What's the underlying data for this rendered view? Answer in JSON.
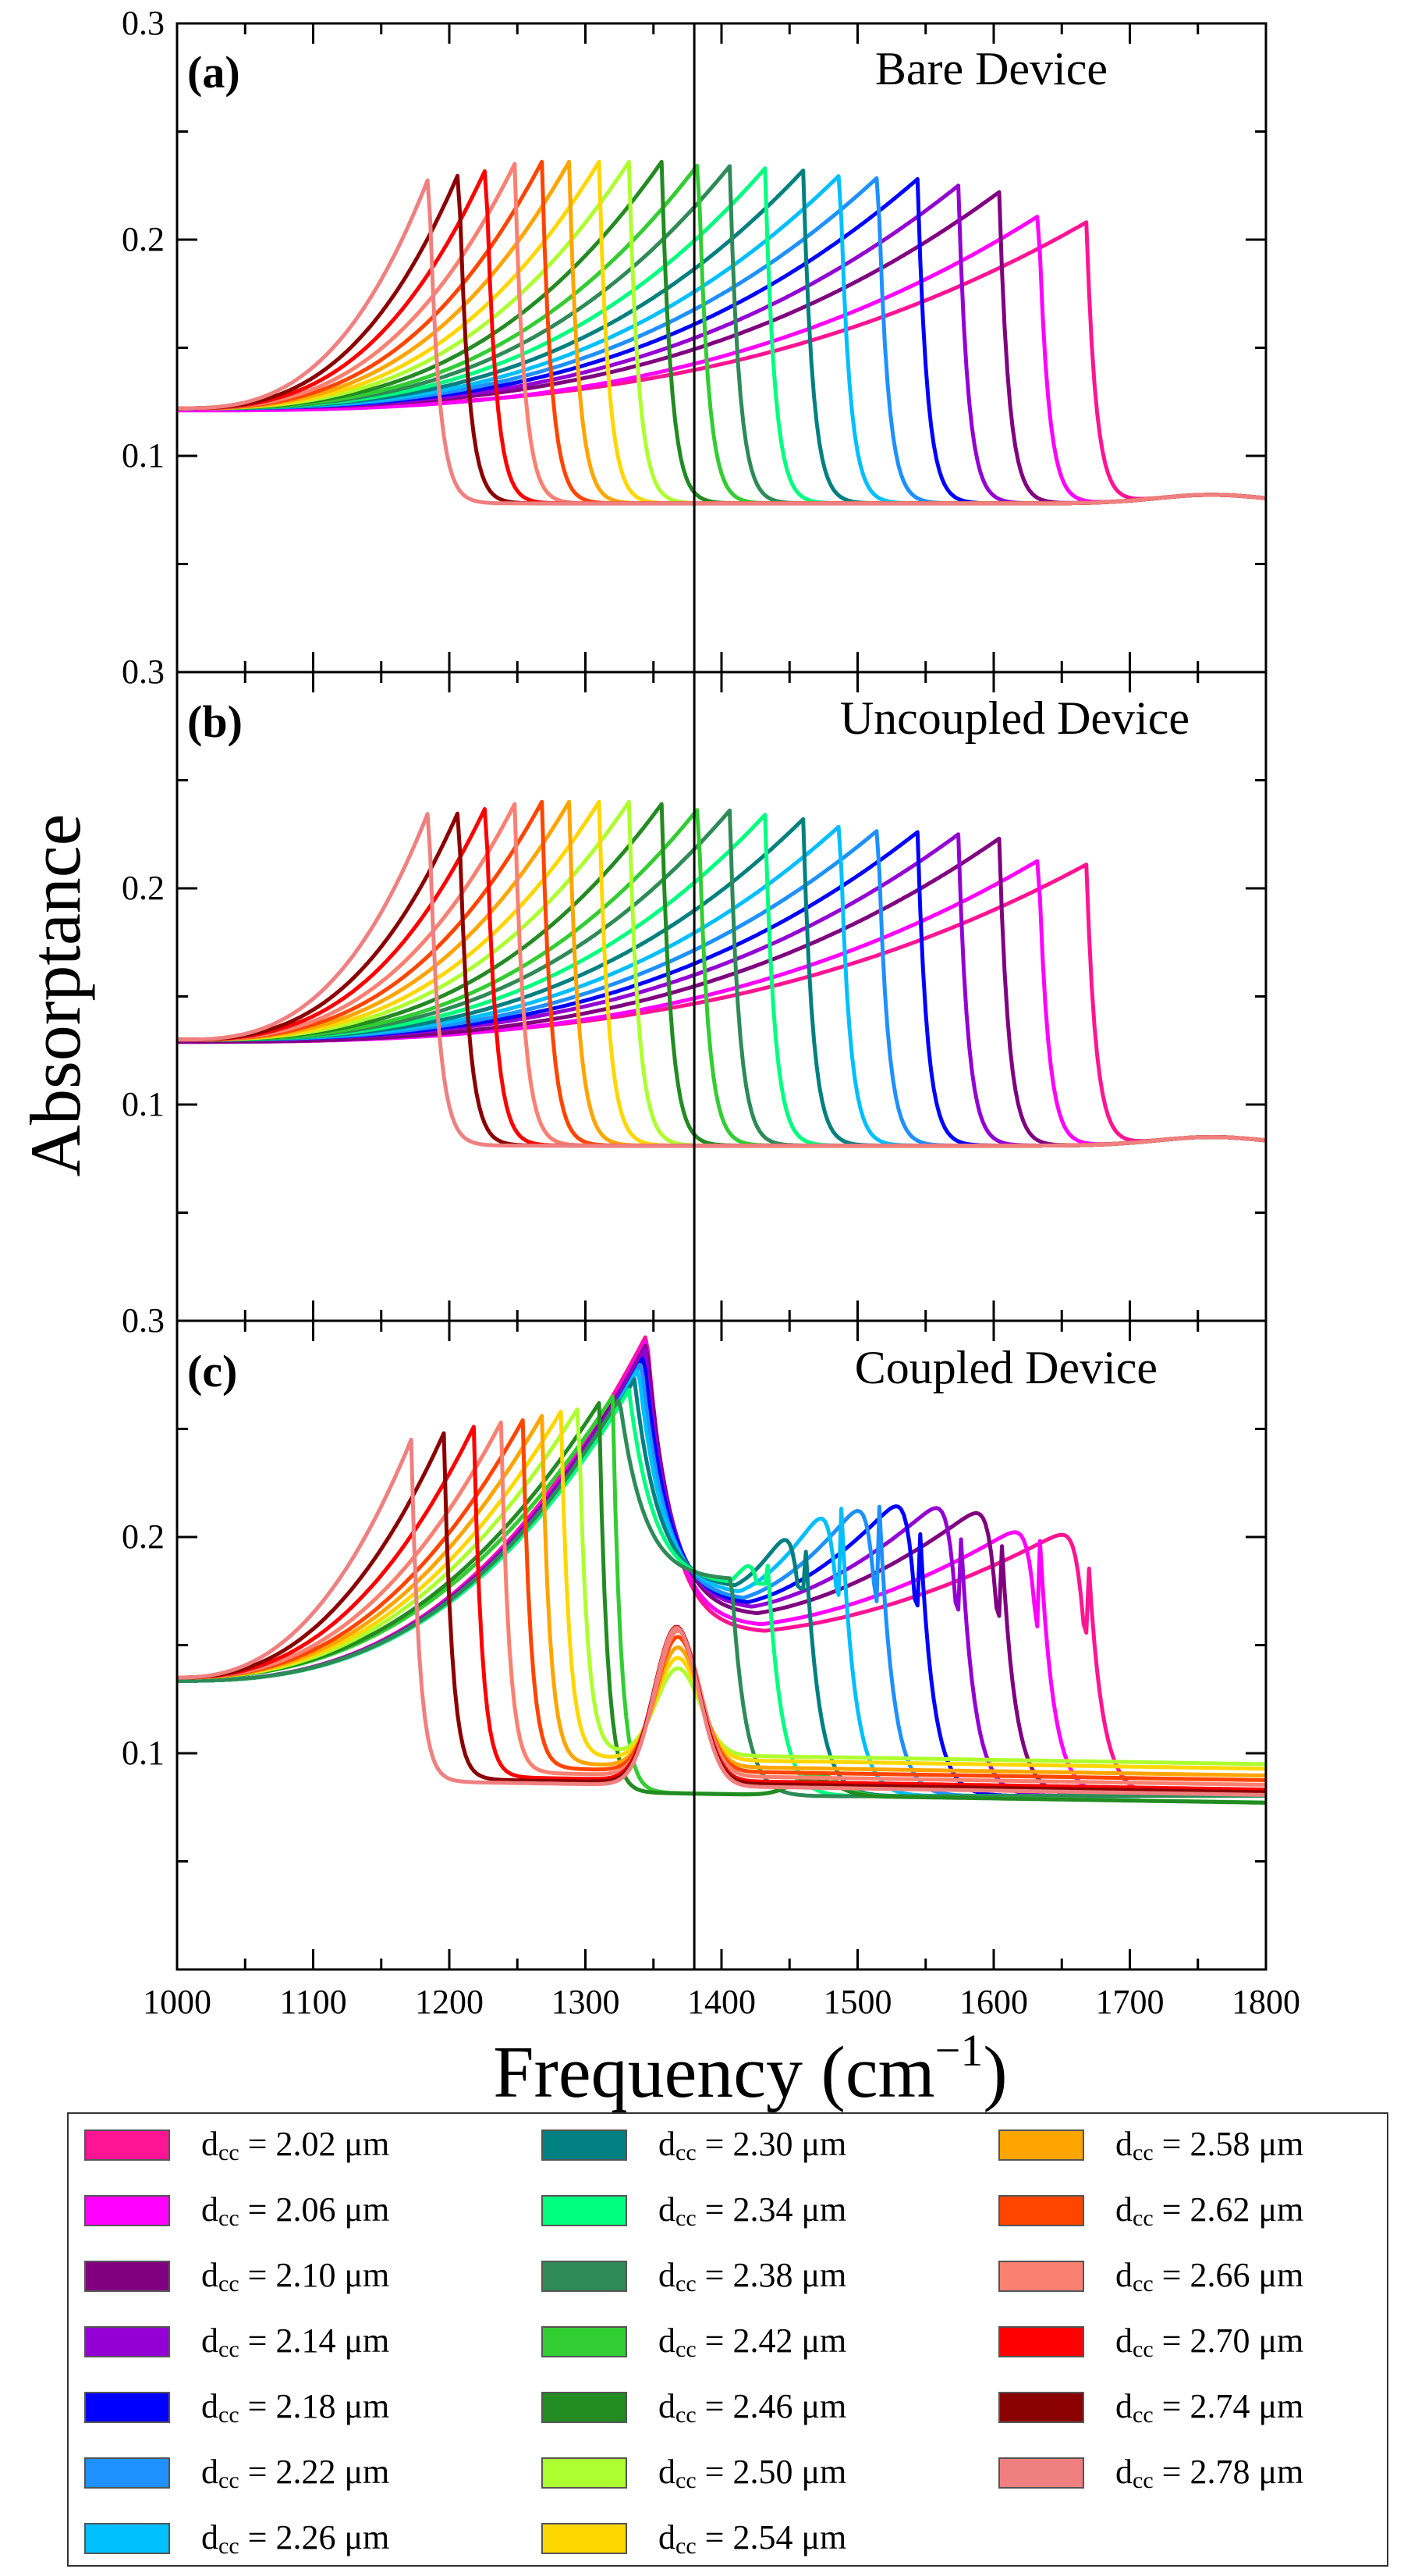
{
  "figure": {
    "ylabel": "Absorptance",
    "xlabel": "Frequency (cm",
    "xlabel_sup": "−1",
    "xlabel_close": ")"
  },
  "legend": {
    "symbol": "d",
    "subscript": "cc",
    "unit": "μm",
    "entries": [
      {
        "value": "2.02",
        "color": "#ff1493"
      },
      {
        "value": "2.06",
        "color": "#ff00ff"
      },
      {
        "value": "2.10",
        "color": "#800080"
      },
      {
        "value": "2.14",
        "color": "#9400d3"
      },
      {
        "value": "2.18",
        "color": "#0000ff"
      },
      {
        "value": "2.22",
        "color": "#1e90ff"
      },
      {
        "value": "2.26",
        "color": "#00bfff"
      },
      {
        "value": "2.30",
        "color": "#008080"
      },
      {
        "value": "2.34",
        "color": "#00ff7f"
      },
      {
        "value": "2.38",
        "color": "#2e8b57"
      },
      {
        "value": "2.42",
        "color": "#32cd32"
      },
      {
        "value": "2.46",
        "color": "#228b22"
      },
      {
        "value": "2.50",
        "color": "#adff2f"
      },
      {
        "value": "2.54",
        "color": "#ffd700"
      },
      {
        "value": "2.58",
        "color": "#ffa500"
      },
      {
        "value": "2.62",
        "color": "#ff4500"
      },
      {
        "value": "2.66",
        "color": "#fa8072"
      },
      {
        "value": "2.70",
        "color": "#ff0000"
      },
      {
        "value": "2.74",
        "color": "#8b0000"
      },
      {
        "value": "2.78",
        "color": "#f08080"
      }
    ]
  },
  "chart_data": [
    {
      "type": "line",
      "panel_label": "(a)",
      "title": "Bare Device",
      "xlim": [
        1000,
        1800
      ],
      "ylim": [
        0,
        0.3
      ],
      "yticks": [
        "0.1",
        "0.2",
        "0.3"
      ],
      "xticks": [
        "1000",
        "1100",
        "1200",
        "1300",
        "1400",
        "1500",
        "1600",
        "1700",
        "1800"
      ],
      "vline_x": 1380,
      "series": [
        {
          "name": "2.02",
          "peak_x": 1668,
          "peak_y": 0.208,
          "base_y": 0.122,
          "floor_y": 0.078
        },
        {
          "name": "2.06",
          "peak_x": 1633,
          "peak_y": 0.211,
          "base_y": 0.121,
          "floor_y": 0.078
        },
        {
          "name": "2.10",
          "peak_x": 1604,
          "peak_y": 0.222,
          "base_y": 0.122,
          "floor_y": 0.078
        },
        {
          "name": "2.14",
          "peak_x": 1574,
          "peak_y": 0.225,
          "base_y": 0.122,
          "floor_y": 0.078
        },
        {
          "name": "2.18",
          "peak_x": 1544,
          "peak_y": 0.228,
          "base_y": 0.122,
          "floor_y": 0.078
        },
        {
          "name": "2.22",
          "peak_x": 1515,
          "peak_y": 0.229,
          "base_y": 0.122,
          "floor_y": 0.078
        },
        {
          "name": "2.26",
          "peak_x": 1487,
          "peak_y": 0.23,
          "base_y": 0.122,
          "floor_y": 0.078
        },
        {
          "name": "2.30",
          "peak_x": 1460,
          "peak_y": 0.232,
          "base_y": 0.122,
          "floor_y": 0.078
        },
        {
          "name": "2.34",
          "peak_x": 1432,
          "peak_y": 0.233,
          "base_y": 0.122,
          "floor_y": 0.078
        },
        {
          "name": "2.38",
          "peak_x": 1406,
          "peak_y": 0.234,
          "base_y": 0.122,
          "floor_y": 0.078
        },
        {
          "name": "2.42",
          "peak_x": 1383,
          "peak_y": 0.235,
          "base_y": 0.122,
          "floor_y": 0.078
        },
        {
          "name": "2.46",
          "peak_x": 1356,
          "peak_y": 0.236,
          "base_y": 0.122,
          "floor_y": 0.078
        },
        {
          "name": "2.50",
          "peak_x": 1332,
          "peak_y": 0.236,
          "base_y": 0.122,
          "floor_y": 0.078
        },
        {
          "name": "2.54",
          "peak_x": 1310,
          "peak_y": 0.236,
          "base_y": 0.122,
          "floor_y": 0.078
        },
        {
          "name": "2.58",
          "peak_x": 1288,
          "peak_y": 0.236,
          "base_y": 0.122,
          "floor_y": 0.078
        },
        {
          "name": "2.62",
          "peak_x": 1268,
          "peak_y": 0.236,
          "base_y": 0.122,
          "floor_y": 0.078
        },
        {
          "name": "2.66",
          "peak_x": 1248,
          "peak_y": 0.235,
          "base_y": 0.122,
          "floor_y": 0.078
        },
        {
          "name": "2.70",
          "peak_x": 1227,
          "peak_y": 0.233,
          "base_y": 0.122,
          "floor_y": 0.078
        },
        {
          "name": "2.74",
          "peak_x": 1207,
          "peak_y": 0.231,
          "base_y": 0.122,
          "floor_y": 0.078
        },
        {
          "name": "2.78",
          "peak_x": 1185,
          "peak_y": 0.229,
          "base_y": 0.122,
          "floor_y": 0.078
        }
      ]
    },
    {
      "type": "line",
      "panel_label": "(b)",
      "title": "Uncoupled Device",
      "xlim": [
        1000,
        1800
      ],
      "ylim": [
        0,
        0.3
      ],
      "yticks": [
        "0.1",
        "0.2",
        "0.3"
      ],
      "xticks": [
        "1000",
        "1100",
        "1200",
        "1300",
        "1400",
        "1500",
        "1600",
        "1700",
        "1800"
      ],
      "vline_x": 1380,
      "series": [
        {
          "name": "2.02",
          "peak_x": 1668,
          "peak_y": 0.211,
          "base_y": 0.13,
          "floor_y": 0.081
        },
        {
          "name": "2.06",
          "peak_x": 1633,
          "peak_y": 0.213,
          "base_y": 0.129,
          "floor_y": 0.081
        },
        {
          "name": "2.10",
          "peak_x": 1604,
          "peak_y": 0.223,
          "base_y": 0.129,
          "floor_y": 0.081
        },
        {
          "name": "2.14",
          "peak_x": 1574,
          "peak_y": 0.225,
          "base_y": 0.13,
          "floor_y": 0.081
        },
        {
          "name": "2.18",
          "peak_x": 1544,
          "peak_y": 0.226,
          "base_y": 0.13,
          "floor_y": 0.081
        },
        {
          "name": "2.22",
          "peak_x": 1515,
          "peak_y": 0.227,
          "base_y": 0.13,
          "floor_y": 0.081
        },
        {
          "name": "2.26",
          "peak_x": 1487,
          "peak_y": 0.229,
          "base_y": 0.13,
          "floor_y": 0.081
        },
        {
          "name": "2.30",
          "peak_x": 1460,
          "peak_y": 0.232,
          "base_y": 0.13,
          "floor_y": 0.081
        },
        {
          "name": "2.34",
          "peak_x": 1432,
          "peak_y": 0.234,
          "base_y": 0.13,
          "floor_y": 0.081
        },
        {
          "name": "2.38",
          "peak_x": 1406,
          "peak_y": 0.236,
          "base_y": 0.13,
          "floor_y": 0.081
        },
        {
          "name": "2.42",
          "peak_x": 1383,
          "peak_y": 0.237,
          "base_y": 0.13,
          "floor_y": 0.081
        },
        {
          "name": "2.46",
          "peak_x": 1356,
          "peak_y": 0.239,
          "base_y": 0.13,
          "floor_y": 0.081
        },
        {
          "name": "2.50",
          "peak_x": 1332,
          "peak_y": 0.24,
          "base_y": 0.13,
          "floor_y": 0.081
        },
        {
          "name": "2.54",
          "peak_x": 1310,
          "peak_y": 0.24,
          "base_y": 0.13,
          "floor_y": 0.081
        },
        {
          "name": "2.58",
          "peak_x": 1288,
          "peak_y": 0.24,
          "base_y": 0.13,
          "floor_y": 0.081
        },
        {
          "name": "2.62",
          "peak_x": 1268,
          "peak_y": 0.24,
          "base_y": 0.13,
          "floor_y": 0.081
        },
        {
          "name": "2.66",
          "peak_x": 1248,
          "peak_y": 0.239,
          "base_y": 0.13,
          "floor_y": 0.081
        },
        {
          "name": "2.70",
          "peak_x": 1227,
          "peak_y": 0.238,
          "base_y": 0.13,
          "floor_y": 0.081
        },
        {
          "name": "2.74",
          "peak_x": 1207,
          "peak_y": 0.236,
          "base_y": 0.13,
          "floor_y": 0.081
        },
        {
          "name": "2.78",
          "peak_x": 1185,
          "peak_y": 0.236,
          "base_y": 0.13,
          "floor_y": 0.081
        }
      ]
    },
    {
      "type": "line",
      "panel_label": "(c)",
      "title": "Coupled Device",
      "xlim": [
        1000,
        1800
      ],
      "ylim": [
        0,
        0.3
      ],
      "yticks": [
        "0.1",
        "0.2",
        "0.3"
      ],
      "xticks": [
        "1000",
        "1100",
        "1200",
        "1300",
        "1400",
        "1500",
        "1600",
        "1700",
        "1800"
      ],
      "vline_x": 1380,
      "series": [
        {
          "name": "2.02",
          "peak_x": 1668,
          "peak_y": 0.211,
          "base_y": 0.135,
          "floor_y": 0.08,
          "lower_peak_x": 1345,
          "lower_peak_y": 0.298,
          "dip_y": 0.157
        },
        {
          "name": "2.06",
          "peak_x": 1633,
          "peak_y": 0.213,
          "base_y": 0.135,
          "floor_y": 0.08,
          "lower_peak_x": 1345,
          "lower_peak_y": 0.296,
          "dip_y": 0.16
        },
        {
          "name": "2.10",
          "peak_x": 1604,
          "peak_y": 0.224,
          "base_y": 0.135,
          "floor_y": 0.08,
          "lower_peak_x": 1345,
          "lower_peak_y": 0.294,
          "dip_y": 0.165
        },
        {
          "name": "2.14",
          "peak_x": 1574,
          "peak_y": 0.228,
          "base_y": 0.135,
          "floor_y": 0.08,
          "lower_peak_x": 1344,
          "lower_peak_y": 0.291,
          "dip_y": 0.168
        },
        {
          "name": "2.18",
          "peak_x": 1544,
          "peak_y": 0.231,
          "base_y": 0.135,
          "floor_y": 0.08,
          "lower_peak_x": 1343,
          "lower_peak_y": 0.288,
          "dip_y": 0.17
        },
        {
          "name": "2.22",
          "peak_x": 1515,
          "peak_y": 0.231,
          "base_y": 0.135,
          "floor_y": 0.08,
          "lower_peak_x": 1341,
          "lower_peak_y": 0.285,
          "dip_y": 0.172
        },
        {
          "name": "2.26",
          "peak_x": 1487,
          "peak_y": 0.23,
          "base_y": 0.135,
          "floor_y": 0.08,
          "lower_peak_x": 1339,
          "lower_peak_y": 0.282,
          "dip_y": 0.175
        },
        {
          "name": "2.30",
          "peak_x": 1460,
          "peak_y": 0.221,
          "base_y": 0.135,
          "floor_y": 0.08,
          "lower_peak_x": 1336,
          "lower_peak_y": 0.277,
          "dip_y": 0.178
        },
        {
          "name": "2.34",
          "peak_x": 1432,
          "peak_y": 0.213,
          "base_y": 0.135,
          "floor_y": 0.08,
          "lower_peak_x": 1332,
          "lower_peak_y": 0.272,
          "dip_y": 0.18
        },
        {
          "name": "2.38",
          "peak_x": 1406,
          "peak_y": 0.197,
          "base_y": 0.135,
          "floor_y": 0.08,
          "lower_peak_x": 1325,
          "lower_peak_y": 0.268,
          "dip_y": 0.182
        },
        {
          "name": "2.42",
          "peak_x": 1320,
          "peak_y": 0.265,
          "base_y": 0.135,
          "floor_y": 0.082,
          "upper_peak_x": 1470,
          "upper_peak_y": 0.092
        },
        {
          "name": "2.46",
          "peak_x": 1310,
          "peak_y": 0.262,
          "base_y": 0.135,
          "floor_y": 0.082,
          "upper_peak_x": 1468,
          "upper_peak_y": 0.09
        },
        {
          "name": "2.50",
          "peak_x": 1295,
          "peak_y": 0.26,
          "base_y": 0.135,
          "floor_y": 0.1,
          "upper_peak_x": 1368,
          "upper_peak_y": 0.14
        },
        {
          "name": "2.54",
          "peak_x": 1282,
          "peak_y": 0.258,
          "base_y": 0.135,
          "floor_y": 0.098,
          "upper_peak_x": 1368,
          "upper_peak_y": 0.145
        },
        {
          "name": "2.58",
          "peak_x": 1268,
          "peak_y": 0.256,
          "base_y": 0.135,
          "floor_y": 0.095,
          "upper_peak_x": 1368,
          "upper_peak_y": 0.15
        },
        {
          "name": "2.62",
          "peak_x": 1254,
          "peak_y": 0.254,
          "base_y": 0.135,
          "floor_y": 0.093,
          "upper_peak_x": 1368,
          "upper_peak_y": 0.155
        },
        {
          "name": "2.66",
          "peak_x": 1238,
          "peak_y": 0.253,
          "base_y": 0.135,
          "floor_y": 0.091,
          "upper_peak_x": 1368,
          "upper_peak_y": 0.158
        },
        {
          "name": "2.70",
          "peak_x": 1218,
          "peak_y": 0.251,
          "base_y": 0.135,
          "floor_y": 0.089,
          "upper_peak_x": 1367,
          "upper_peak_y": 0.16
        },
        {
          "name": "2.74",
          "peak_x": 1196,
          "peak_y": 0.248,
          "base_y": 0.135,
          "floor_y": 0.088,
          "upper_peak_x": 1367,
          "upper_peak_y": 0.16
        },
        {
          "name": "2.78",
          "peak_x": 1172,
          "peak_y": 0.245,
          "base_y": 0.135,
          "floor_y": 0.087,
          "upper_peak_x": 1367,
          "upper_peak_y": 0.16
        }
      ]
    }
  ]
}
